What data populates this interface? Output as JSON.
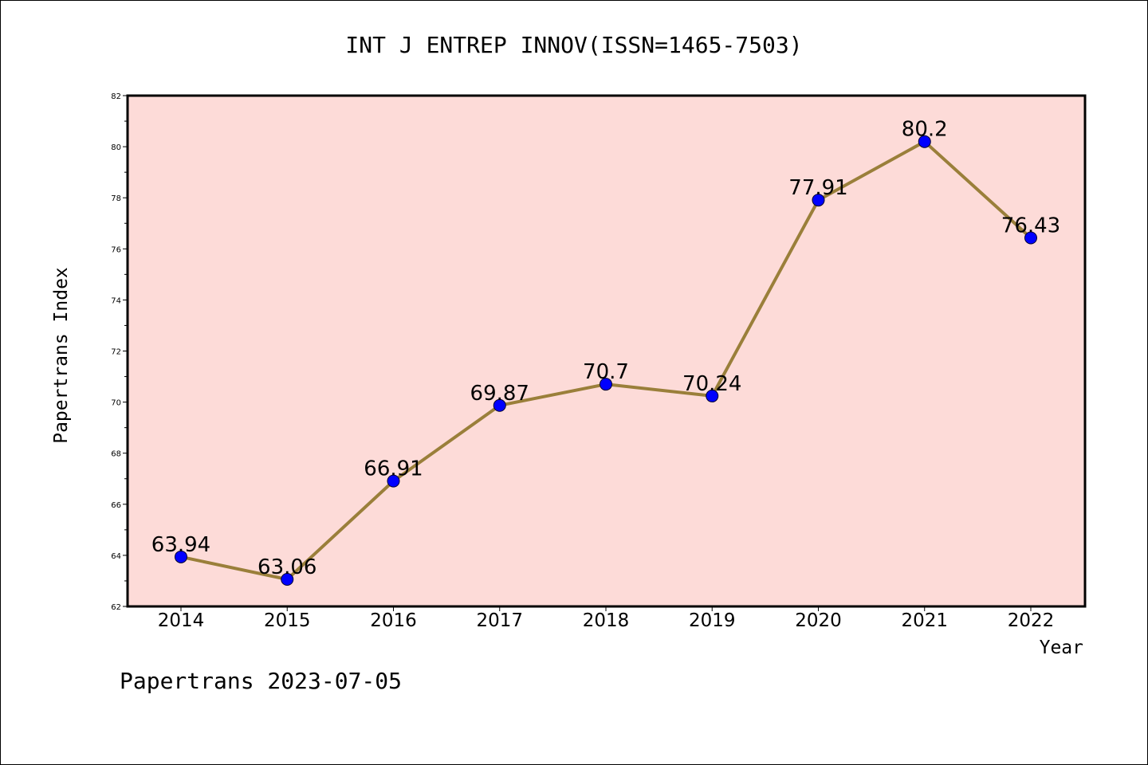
{
  "chart_data": {
    "type": "line",
    "title": "INT J ENTREP INNOV(ISSN=1465-7503)",
    "xlabel": "Year",
    "ylabel": "Papertrans Index",
    "categories": [
      "2014",
      "2015",
      "2016",
      "2017",
      "2018",
      "2019",
      "2020",
      "2021",
      "2022"
    ],
    "values": [
      63.94,
      63.06,
      66.91,
      69.87,
      70.7,
      70.24,
      77.91,
      80.2,
      76.43
    ],
    "data_labels": [
      "63.94",
      "63.06",
      "66.91",
      "69.87",
      "70.7",
      "70.24",
      "77.91",
      "80.2",
      "76.43"
    ],
    "ylim": [
      62,
      82
    ],
    "yticks": [
      62,
      64,
      66,
      68,
      70,
      72,
      74,
      76,
      78,
      80,
      82
    ],
    "grid": false,
    "colors": {
      "plot_background": "#fddbd8",
      "line": "#9a7f3a",
      "marker": "#0000ff"
    }
  },
  "footer": "Papertrans 2023-07-05"
}
